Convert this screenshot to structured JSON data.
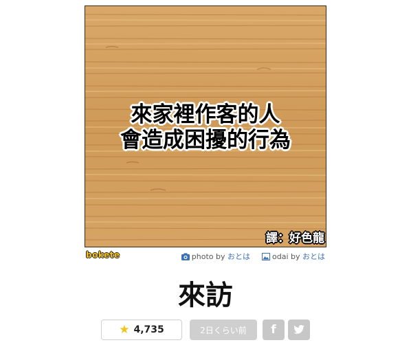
{
  "photo": {
    "caption_lines": [
      "來家裡作客的人",
      "會造成困擾的行為"
    ],
    "translator": "譯：好色龍"
  },
  "meta": {
    "logo": "bokete",
    "photo_prefix": "photo by",
    "photo_author": "おとは",
    "odai_prefix": "odai by",
    "odai_author": "おとは"
  },
  "title": "來訪",
  "actions": {
    "stars": "4,735",
    "time": "2日くらい前",
    "facebook_letter": "f"
  },
  "colors": {
    "star": "#f2c31a",
    "link": "#3b6fb6",
    "share_bg": "#c7c7c7"
  }
}
